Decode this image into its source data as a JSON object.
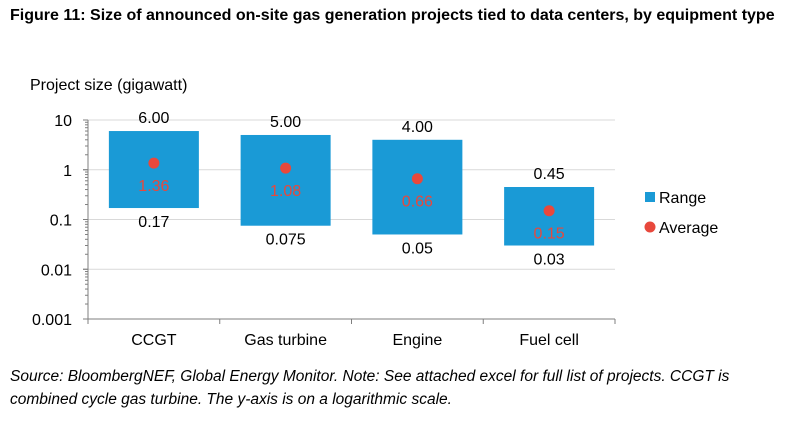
{
  "figure": {
    "title": "Figure 11: Size of announced on-site gas generation projects tied to data centers, by equipment type",
    "source": "Source: BloombergNEF, Global Energy Monitor. Note: See attached excel for full list of projects. CCGT is combined cycle gas turbine. The y-axis is on a logarithmic scale."
  },
  "colors": {
    "range": "#1a9ad6",
    "average": "#e8483c",
    "average_label": "#e8483c",
    "grid": "#d9d9d9",
    "axis": "#7f7f7f"
  },
  "chart_data": {
    "type": "bar",
    "ylabel": "Project size (gigawatt)",
    "yscale": "log",
    "ylim": [
      0.001,
      10
    ],
    "yticks": [
      {
        "value": 10,
        "label": "10"
      },
      {
        "value": 1,
        "label": "1"
      },
      {
        "value": 0.1,
        "label": "0.1"
      },
      {
        "value": 0.01,
        "label": "0.01"
      },
      {
        "value": 0.001,
        "label": "0.001"
      }
    ],
    "grid": true,
    "categories": [
      "CCGT",
      "Gas turbine",
      "Engine",
      "Fuel cell"
    ],
    "series": [
      {
        "name": "Range",
        "type": "floating-bar",
        "low": [
          0.17,
          0.075,
          0.05,
          0.03
        ],
        "high": [
          6.0,
          5.0,
          4.0,
          0.45
        ],
        "low_labels": [
          "0.17",
          "0.075",
          "0.05",
          "0.03"
        ],
        "high_labels": [
          "6.00",
          "5.00",
          "4.00",
          "0.45"
        ]
      },
      {
        "name": "Average",
        "type": "point",
        "values": [
          1.36,
          1.08,
          0.66,
          0.15
        ],
        "labels": [
          "1.36",
          "1.08",
          "0.66",
          "0.15"
        ]
      }
    ],
    "legend": {
      "position": "right",
      "items": [
        "Range",
        "Average"
      ]
    }
  }
}
